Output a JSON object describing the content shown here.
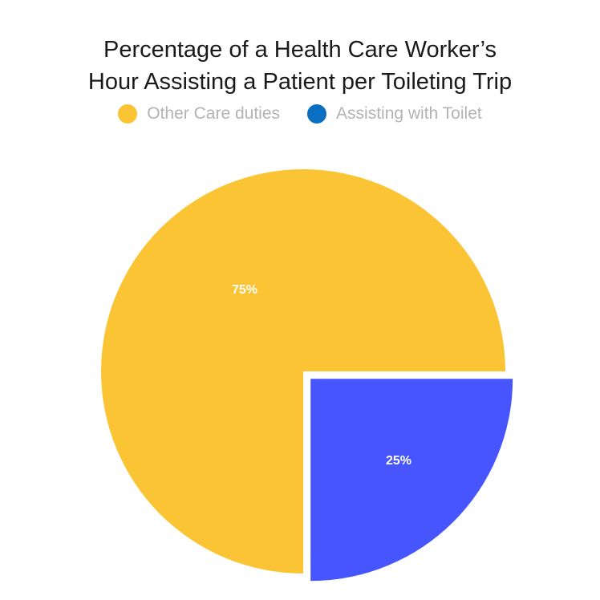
{
  "chart_data": {
    "type": "pie",
    "title": "Percentage of a Health Care Worker’s\nHour Assisting a Patient per Toileting Trip",
    "legend_position": "top",
    "slices": [
      {
        "name": "Other Care duties",
        "value": 75,
        "label": "75%",
        "color": "#FBC434",
        "exploded": false
      },
      {
        "name": "Assisting with Toilet",
        "value": 25,
        "label": "25%",
        "color": "#4655FE",
        "exploded": true
      }
    ],
    "legend": [
      {
        "label": "Other Care duties",
        "color": "#FBC434"
      },
      {
        "label": "Assisting with Toilet",
        "color": "#0A6FC1"
      }
    ]
  }
}
